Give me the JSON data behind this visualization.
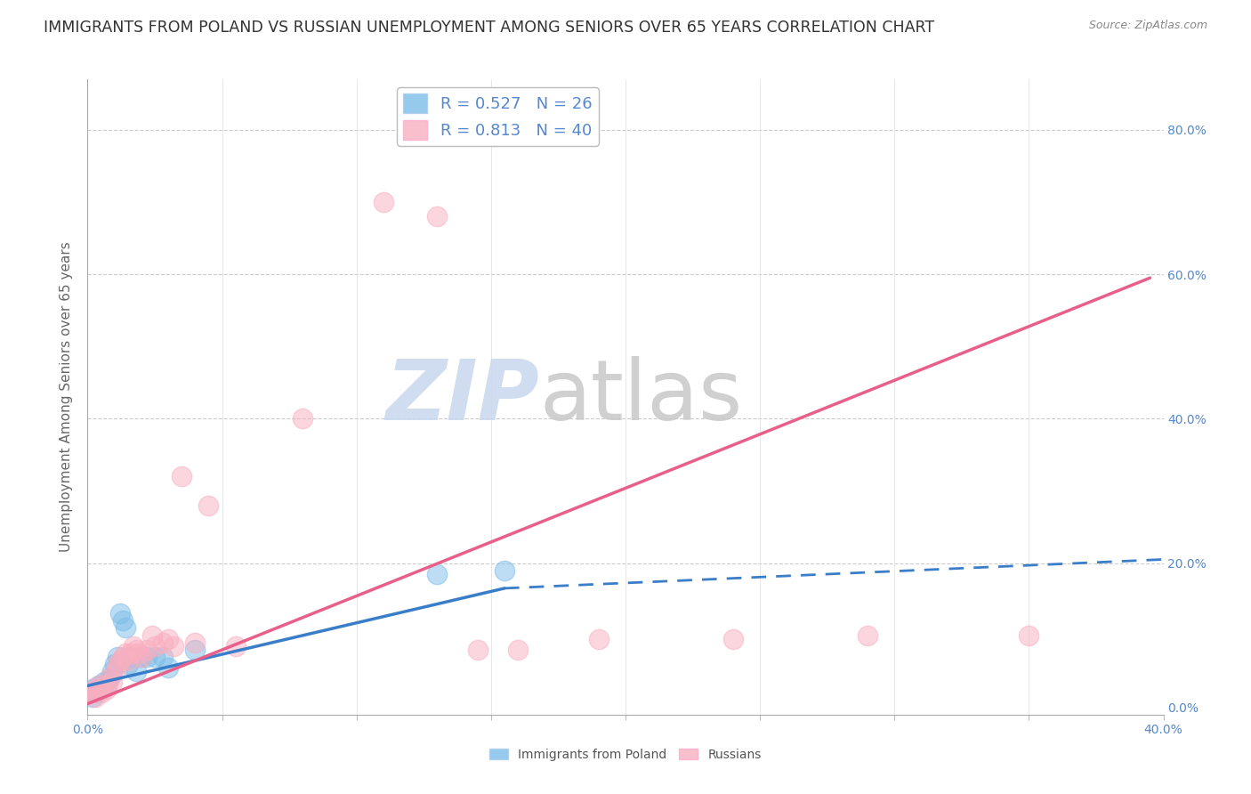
{
  "title": "IMMIGRANTS FROM POLAND VS RUSSIAN UNEMPLOYMENT AMONG SENIORS OVER 65 YEARS CORRELATION CHART",
  "source": "Source: ZipAtlas.com",
  "ylabel": "Unemployment Among Seniors over 65 years",
  "xlim": [
    0.0,
    0.4
  ],
  "ylim": [
    -0.01,
    0.87
  ],
  "xticks": [
    0.0,
    0.05,
    0.1,
    0.15,
    0.2,
    0.25,
    0.3,
    0.35,
    0.4
  ],
  "ytick_positions": [
    0.0,
    0.2,
    0.4,
    0.6,
    0.8
  ],
  "ytick_labels": [
    "0.0%",
    "20.0%",
    "40.0%",
    "60.0%",
    "80.0%"
  ],
  "poland_scatter": [
    [
      0.001,
      0.02
    ],
    [
      0.002,
      0.015
    ],
    [
      0.002,
      0.025
    ],
    [
      0.003,
      0.02
    ],
    [
      0.004,
      0.03
    ],
    [
      0.005,
      0.025
    ],
    [
      0.006,
      0.035
    ],
    [
      0.007,
      0.03
    ],
    [
      0.008,
      0.04
    ],
    [
      0.009,
      0.05
    ],
    [
      0.01,
      0.06
    ],
    [
      0.011,
      0.07
    ],
    [
      0.012,
      0.13
    ],
    [
      0.013,
      0.12
    ],
    [
      0.014,
      0.11
    ],
    [
      0.015,
      0.06
    ],
    [
      0.016,
      0.07
    ],
    [
      0.018,
      0.05
    ],
    [
      0.02,
      0.07
    ],
    [
      0.022,
      0.07
    ],
    [
      0.025,
      0.07
    ],
    [
      0.028,
      0.07
    ],
    [
      0.03,
      0.055
    ],
    [
      0.04,
      0.08
    ],
    [
      0.13,
      0.185
    ],
    [
      0.155,
      0.19
    ]
  ],
  "russia_scatter": [
    [
      0.001,
      0.02
    ],
    [
      0.002,
      0.02
    ],
    [
      0.003,
      0.015
    ],
    [
      0.003,
      0.025
    ],
    [
      0.004,
      0.03
    ],
    [
      0.005,
      0.02
    ],
    [
      0.006,
      0.03
    ],
    [
      0.007,
      0.025
    ],
    [
      0.008,
      0.04
    ],
    [
      0.009,
      0.035
    ],
    [
      0.01,
      0.05
    ],
    [
      0.011,
      0.06
    ],
    [
      0.012,
      0.065
    ],
    [
      0.013,
      0.07
    ],
    [
      0.014,
      0.075
    ],
    [
      0.015,
      0.065
    ],
    [
      0.016,
      0.075
    ],
    [
      0.017,
      0.085
    ],
    [
      0.018,
      0.08
    ],
    [
      0.019,
      0.075
    ],
    [
      0.02,
      0.07
    ],
    [
      0.022,
      0.08
    ],
    [
      0.024,
      0.1
    ],
    [
      0.025,
      0.085
    ],
    [
      0.028,
      0.09
    ],
    [
      0.03,
      0.095
    ],
    [
      0.032,
      0.085
    ],
    [
      0.035,
      0.32
    ],
    [
      0.04,
      0.09
    ],
    [
      0.045,
      0.28
    ],
    [
      0.055,
      0.085
    ],
    [
      0.08,
      0.4
    ],
    [
      0.11,
      0.7
    ],
    [
      0.13,
      0.68
    ],
    [
      0.145,
      0.08
    ],
    [
      0.16,
      0.08
    ],
    [
      0.19,
      0.095
    ],
    [
      0.24,
      0.095
    ],
    [
      0.29,
      0.1
    ],
    [
      0.35,
      0.1
    ]
  ],
  "poland_line_solid": {
    "x": [
      0.0,
      0.155
    ],
    "y": [
      0.03,
      0.165
    ]
  },
  "poland_line_dash": {
    "x": [
      0.155,
      0.4
    ],
    "y": [
      0.165,
      0.205
    ]
  },
  "russia_line": {
    "x": [
      0.0,
      0.395
    ],
    "y": [
      0.005,
      0.595
    ]
  },
  "poland_color": "#7bbde8",
  "russia_color": "#f9afc0",
  "poland_line_color": "#3a7dc9",
  "russia_line_color": "#e8608a",
  "right_tick_color": "#5588cc",
  "bottom_tick_color": "#5588cc",
  "watermark_zip": "ZIP",
  "watermark_atlas": "atlas",
  "watermark_color_zip": "#c8d8ee",
  "watermark_color_atlas": "#c8c8c8",
  "background_color": "#ffffff",
  "title_fontsize": 12.5,
  "axis_label_fontsize": 11,
  "tick_fontsize": 10,
  "legend_fontsize": 13
}
